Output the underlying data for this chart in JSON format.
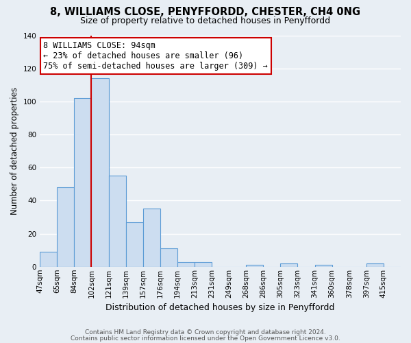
{
  "title": "8, WILLIAMS CLOSE, PENYFFORDD, CHESTER, CH4 0NG",
  "subtitle": "Size of property relative to detached houses in Penyffordd",
  "xlabel": "Distribution of detached houses by size in Penyffordd",
  "ylabel": "Number of detached properties",
  "bin_labels": [
    "47sqm",
    "65sqm",
    "84sqm",
    "102sqm",
    "121sqm",
    "139sqm",
    "157sqm",
    "176sqm",
    "194sqm",
    "213sqm",
    "231sqm",
    "249sqm",
    "268sqm",
    "286sqm",
    "305sqm",
    "323sqm",
    "341sqm",
    "360sqm",
    "378sqm",
    "397sqm",
    "415sqm"
  ],
  "bar_heights": [
    9,
    48,
    102,
    114,
    55,
    27,
    35,
    11,
    3,
    3,
    0,
    0,
    1,
    0,
    2,
    0,
    1,
    0,
    0,
    2,
    0
  ],
  "bar_color": "#ccddf0",
  "bar_edge_color": "#5b9bd5",
  "vline_x_idx": 3,
  "vline_color": "#cc0000",
  "ylim": [
    0,
    140
  ],
  "yticks": [
    0,
    20,
    40,
    60,
    80,
    100,
    120,
    140
  ],
  "annotation_title": "8 WILLIAMS CLOSE: 94sqm",
  "annotation_line1": "← 23% of detached houses are smaller (96)",
  "annotation_line2": "75% of semi-detached houses are larger (309) →",
  "annotation_box_facecolor": "#ffffff",
  "annotation_box_edgecolor": "#cc0000",
  "footer_line1": "Contains HM Land Registry data © Crown copyright and database right 2024.",
  "footer_line2": "Contains public sector information licensed under the Open Government Licence v3.0.",
  "background_color": "#e8eef4",
  "plot_background": "#e8eef4",
  "grid_color": "#ffffff",
  "title_fontsize": 10.5,
  "subtitle_fontsize": 9.0,
  "ylabel_fontsize": 8.5,
  "xlabel_fontsize": 9.0,
  "tick_fontsize": 7.5,
  "annotation_fontsize": 8.5,
  "footer_fontsize": 6.5
}
